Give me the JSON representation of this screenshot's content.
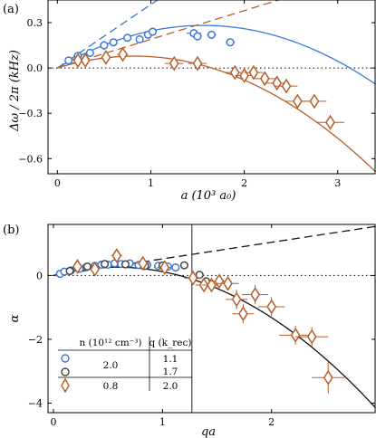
{
  "colors": {
    "blue": "#3a78d8",
    "brown": "#b55e28",
    "black": "#111111",
    "gray": "#444444"
  },
  "chart_data": [
    {
      "type": "scatter",
      "panel_label": "(a)",
      "xlabel": "a (10³ a₀)",
      "ylabel": "Δω / 2π (kHz)",
      "xlim": [
        -0.1,
        3.4
      ],
      "ylim": [
        -0.7,
        0.45
      ],
      "x_ticks": [
        {
          "v": 0,
          "t": "0"
        },
        {
          "v": 1,
          "t": "1"
        },
        {
          "v": 2,
          "t": "2"
        },
        {
          "v": 3,
          "t": "3"
        }
      ],
      "y_ticks": [
        {
          "v": 0.3,
          "t": "0.3"
        },
        {
          "v": 0.0,
          "t": "0.0"
        },
        {
          "v": -0.3,
          "t": "−0.3"
        },
        {
          "v": -0.6,
          "t": "−0.6"
        }
      ],
      "zero_line": true,
      "series": [
        {
          "marker": "circle",
          "color": "blue",
          "points": [
            {
              "x": 0.12,
              "y": 0.05,
              "xe": 0.0,
              "ye": 0.01
            },
            {
              "x": 0.22,
              "y": 0.08,
              "xe": 0.0,
              "ye": 0.01
            },
            {
              "x": 0.35,
              "y": 0.1,
              "xe": 0.0,
              "ye": 0.01
            },
            {
              "x": 0.5,
              "y": 0.15,
              "xe": 0.02,
              "ye": 0.03
            },
            {
              "x": 0.6,
              "y": 0.17,
              "xe": 0.0,
              "ye": 0.01
            },
            {
              "x": 0.75,
              "y": 0.2,
              "xe": 0.0,
              "ye": 0.02
            },
            {
              "x": 0.88,
              "y": 0.19,
              "xe": 0.0,
              "ye": 0.01
            },
            {
              "x": 0.97,
              "y": 0.22,
              "xe": 0.0,
              "ye": 0.01
            },
            {
              "x": 1.02,
              "y": 0.24,
              "xe": 0.0,
              "ye": 0.01
            },
            {
              "x": 1.46,
              "y": 0.23,
              "xe": 0.08,
              "ye": 0.03
            },
            {
              "x": 1.5,
              "y": 0.21,
              "xe": 0.0,
              "ye": 0.01
            },
            {
              "x": 1.65,
              "y": 0.22,
              "xe": 0.05,
              "ye": 0.02
            },
            {
              "x": 1.85,
              "y": 0.17,
              "xe": 0.05,
              "ye": 0.02
            }
          ]
        },
        {
          "marker": "diamond",
          "color": "brown",
          "points": [
            {
              "x": 0.22,
              "y": 0.05,
              "xe": 0.03,
              "ye": 0.01
            },
            {
              "x": 0.3,
              "y": 0.05,
              "xe": 0.03,
              "ye": 0.01
            },
            {
              "x": 0.52,
              "y": 0.07,
              "xe": 0.05,
              "ye": 0.01
            },
            {
              "x": 0.7,
              "y": 0.09,
              "xe": 0.06,
              "ye": 0.01
            },
            {
              "x": 1.25,
              "y": 0.03,
              "xe": 0.1,
              "ye": 0.01
            },
            {
              "x": 1.5,
              "y": 0.03,
              "xe": 0.1,
              "ye": 0.02
            },
            {
              "x": 1.9,
              "y": -0.03,
              "xe": 0.1,
              "ye": 0.02
            },
            {
              "x": 2.0,
              "y": -0.05,
              "xe": 0.1,
              "ye": 0.02
            },
            {
              "x": 2.1,
              "y": -0.03,
              "xe": 0.1,
              "ye": 0.02
            },
            {
              "x": 2.22,
              "y": -0.07,
              "xe": 0.12,
              "ye": 0.02
            },
            {
              "x": 2.35,
              "y": -0.1,
              "xe": 0.12,
              "ye": 0.02
            },
            {
              "x": 2.45,
              "y": -0.12,
              "xe": 0.12,
              "ye": 0.02
            },
            {
              "x": 2.57,
              "y": -0.22,
              "xe": 0.13,
              "ye": 0.02
            },
            {
              "x": 2.75,
              "y": -0.22,
              "xe": 0.13,
              "ye": 0.02
            },
            {
              "x": 2.92,
              "y": -0.36,
              "xe": 0.15,
              "ye": 0.05
            }
          ]
        }
      ],
      "curves": [
        {
          "kind": "linear",
          "slope": 0.42,
          "x0": 0.0,
          "x1": 1.2,
          "color": "blue",
          "dash": true
        },
        {
          "kind": "quadratic",
          "a1": 0.36,
          "a2": 0.115,
          "x0": 0.0,
          "x1": 3.4,
          "color": "blue",
          "dash": false
        },
        {
          "kind": "linear",
          "slope": 0.19,
          "x0": 0.0,
          "x1": 3.4,
          "color": "brown",
          "dash": true
        },
        {
          "kind": "quadratic",
          "a1": 0.19,
          "a2": 0.115,
          "x0": 0.0,
          "x1": 3.4,
          "color": "brown",
          "dash": false
        }
      ]
    },
    {
      "type": "scatter",
      "panel_label": "(b)",
      "xlabel": "qa",
      "ylabel": "α",
      "xlim": [
        -0.05,
        2.95
      ],
      "ylim": [
        -4.3,
        1.6
      ],
      "x_ticks": [
        {
          "v": 0,
          "t": "0"
        },
        {
          "v": 1,
          "t": "1"
        },
        {
          "v": 2,
          "t": "2"
        }
      ],
      "y_ticks": [
        {
          "v": 0,
          "t": "0"
        },
        {
          "v": -2,
          "t": "−2"
        },
        {
          "v": -4,
          "t": "−4"
        }
      ],
      "zero_line": true,
      "vline_x": 1.27,
      "series": [
        {
          "marker": "circle",
          "color": "blue",
          "points": [
            {
              "x": 0.06,
              "y": 0.05,
              "xe": 0.0,
              "ye": 0.0
            },
            {
              "x": 0.1,
              "y": 0.12,
              "xe": 0.0,
              "ye": 0.0
            },
            {
              "x": 0.16,
              "y": 0.16,
              "xe": 0.0,
              "ye": 0.0
            },
            {
              "x": 0.24,
              "y": 0.21,
              "xe": 0.0,
              "ye": 0.0
            },
            {
              "x": 0.3,
              "y": 0.26,
              "xe": 0.0,
              "ye": 0.0
            },
            {
              "x": 0.38,
              "y": 0.3,
              "xe": 0.0,
              "ye": 0.0
            },
            {
              "x": 0.44,
              "y": 0.34,
              "xe": 0.0,
              "ye": 0.0
            },
            {
              "x": 0.5,
              "y": 0.34,
              "xe": 0.0,
              "ye": 0.0
            },
            {
              "x": 0.56,
              "y": 0.38,
              "xe": 0.0,
              "ye": 0.0
            },
            {
              "x": 0.62,
              "y": 0.36,
              "xe": 0.0,
              "ye": 0.0
            },
            {
              "x": 0.7,
              "y": 0.38,
              "xe": 0.0,
              "ye": 0.0
            },
            {
              "x": 0.78,
              "y": 0.33,
              "xe": 0.0,
              "ye": 0.0
            },
            {
              "x": 0.86,
              "y": 0.33,
              "xe": 0.0,
              "ye": 0.0
            },
            {
              "x": 0.96,
              "y": 0.3,
              "xe": 0.0,
              "ye": 0.0
            },
            {
              "x": 1.05,
              "y": 0.28,
              "xe": 0.0,
              "ye": 0.0
            },
            {
              "x": 1.12,
              "y": 0.25,
              "xe": 0.0,
              "ye": 0.0
            }
          ]
        },
        {
          "marker": "circle",
          "color": "gray",
          "points": [
            {
              "x": 0.15,
              "y": 0.14,
              "xe": 0.0,
              "ye": 0.0
            },
            {
              "x": 0.31,
              "y": 0.28,
              "xe": 0.0,
              "ye": 0.0
            },
            {
              "x": 0.47,
              "y": 0.36,
              "xe": 0.0,
              "ye": 0.0
            },
            {
              "x": 0.66,
              "y": 0.35,
              "xe": 0.0,
              "ye": 0.0
            },
            {
              "x": 0.84,
              "y": 0.3,
              "xe": 0.0,
              "ye": 0.0
            },
            {
              "x": 1.0,
              "y": 0.31,
              "xe": 0.0,
              "ye": 0.0
            },
            {
              "x": 1.2,
              "y": 0.32,
              "xe": 0.0,
              "ye": 0.0
            },
            {
              "x": 1.34,
              "y": 0.02,
              "xe": 0.0,
              "ye": 0.0
            },
            {
              "x": 1.4,
              "y": -0.18,
              "xe": 0.0,
              "ye": 0.0
            }
          ]
        },
        {
          "marker": "diamond",
          "color": "brown",
          "points": [
            {
              "x": 0.22,
              "y": 0.28,
              "xe": 0.03,
              "ye": 0.05
            },
            {
              "x": 0.38,
              "y": 0.2,
              "xe": 0.04,
              "ye": 0.05
            },
            {
              "x": 0.58,
              "y": 0.62,
              "xe": 0.05,
              "ye": 0.1
            },
            {
              "x": 0.82,
              "y": 0.38,
              "xe": 0.06,
              "ye": 0.05
            },
            {
              "x": 1.02,
              "y": 0.25,
              "xe": 0.07,
              "ye": 0.05
            },
            {
              "x": 1.28,
              "y": -0.08,
              "xe": 0.08,
              "ye": 0.1
            },
            {
              "x": 1.38,
              "y": -0.3,
              "xe": 0.08,
              "ye": 0.1
            },
            {
              "x": 1.45,
              "y": -0.3,
              "xe": 0.09,
              "ye": 0.1
            },
            {
              "x": 1.52,
              "y": -0.18,
              "xe": 0.09,
              "ye": 0.1
            },
            {
              "x": 1.6,
              "y": -0.25,
              "xe": 0.1,
              "ye": 0.1
            },
            {
              "x": 1.68,
              "y": -0.75,
              "xe": 0.1,
              "ye": 0.3
            },
            {
              "x": 1.74,
              "y": -1.2,
              "xe": 0.1,
              "ye": 0.3
            },
            {
              "x": 1.85,
              "y": -0.6,
              "xe": 0.12,
              "ye": 0.3
            },
            {
              "x": 2.0,
              "y": -0.98,
              "xe": 0.12,
              "ye": 0.3
            },
            {
              "x": 2.22,
              "y": -1.87,
              "xe": 0.15,
              "ye": 0.3
            },
            {
              "x": 2.37,
              "y": -1.92,
              "xe": 0.15,
              "ye": 0.3
            },
            {
              "x": 2.52,
              "y": -3.2,
              "xe": 0.15,
              "ye": 0.5
            }
          ]
        }
      ],
      "curves": [
        {
          "kind": "linear",
          "slope": 0.52,
          "x0": 0.0,
          "x1": 2.95,
          "color": "black",
          "dash": true
        },
        {
          "kind": "quadratic",
          "a1": 0.9,
          "a2": 0.78,
          "x0": 0.0,
          "x1": 2.95,
          "color": "black",
          "dash": false
        }
      ],
      "legend_table": {
        "header_n": "n (10¹² cm⁻³)",
        "header_q": "q (k_rec)",
        "n_blue_black": "2.0",
        "n_brown": "0.8",
        "q_blue": "1.1",
        "q_black": "1.7",
        "q_brown": "2.0"
      }
    }
  ]
}
